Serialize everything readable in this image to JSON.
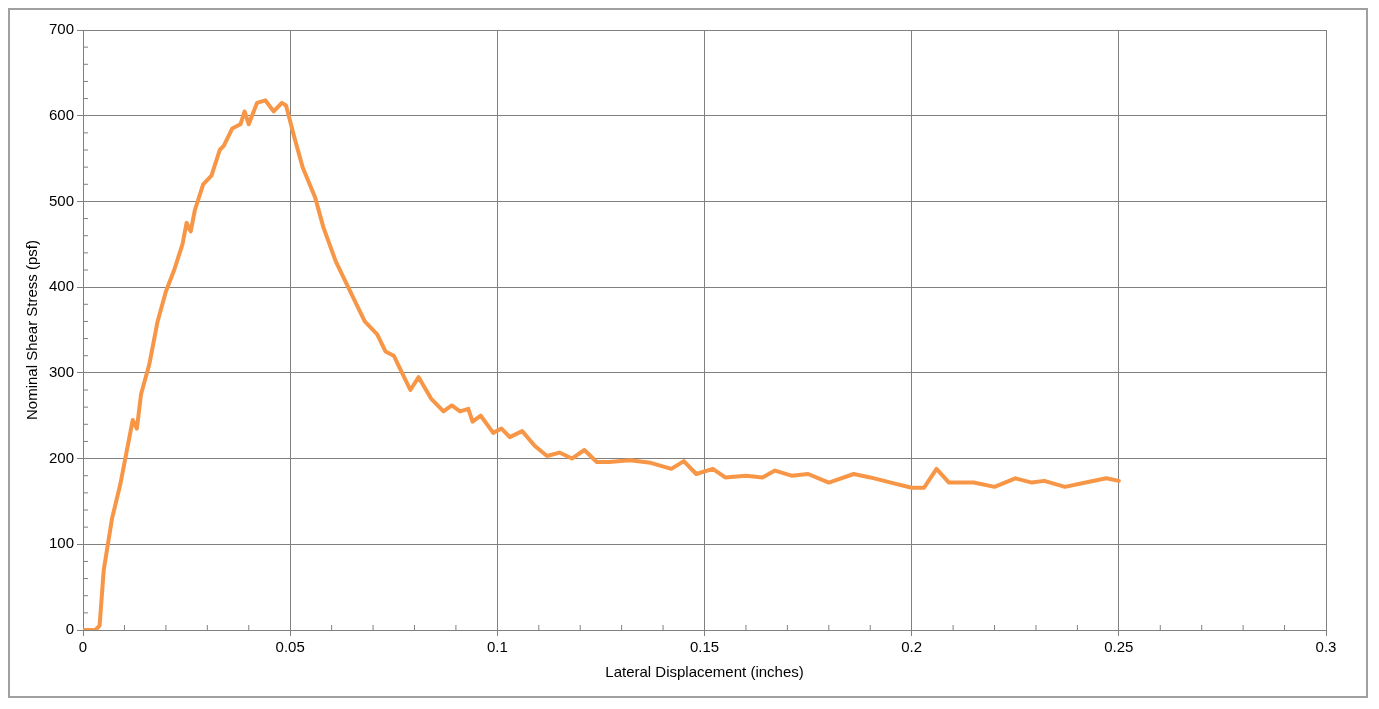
{
  "chart_data": {
    "type": "line",
    "xlabel": "Lateral Displacement (inches)",
    "ylabel": "Nominal Shear Stress (psf)",
    "xlim": [
      0,
      0.3
    ],
    "xticks": [
      0,
      0.05,
      0.1,
      0.15,
      0.2,
      0.25,
      0.3
    ],
    "ylim": [
      0,
      700
    ],
    "yticks": [
      0,
      100,
      200,
      300,
      400,
      500,
      600,
      700
    ],
    "grid": true,
    "legend": false,
    "marker": "none",
    "line_style": "solid",
    "series": [
      {
        "color": "#f79646",
        "x": [
          0,
          0.003,
          0.004,
          0.005,
          0.007,
          0.009,
          0.011,
          0.012,
          0.013,
          0.014,
          0.016,
          0.018,
          0.02,
          0.022,
          0.024,
          0.025,
          0.026,
          0.027,
          0.029,
          0.031,
          0.033,
          0.034,
          0.036,
          0.038,
          0.039,
          0.04,
          0.042,
          0.044,
          0.046,
          0.048,
          0.049,
          0.051,
          0.053,
          0.056,
          0.058,
          0.061,
          0.064,
          0.066,
          0.068,
          0.071,
          0.073,
          0.075,
          0.077,
          0.079,
          0.081,
          0.084,
          0.087,
          0.089,
          0.091,
          0.093,
          0.094,
          0.096,
          0.099,
          0.101,
          0.103,
          0.106,
          0.109,
          0.112,
          0.115,
          0.118,
          0.121,
          0.124,
          0.127,
          0.132,
          0.137,
          0.142,
          0.145,
          0.148,
          0.152,
          0.155,
          0.16,
          0.164,
          0.167,
          0.171,
          0.175,
          0.18,
          0.186,
          0.19,
          0.195,
          0.2,
          0.203,
          0.206,
          0.209,
          0.215,
          0.22,
          0.225,
          0.229,
          0.232,
          0.237,
          0.242,
          0.247,
          0.25
        ],
        "values": [
          0,
          0,
          5,
          70,
          130,
          170,
          220,
          245,
          235,
          275,
          310,
          360,
          395,
          420,
          450,
          475,
          465,
          490,
          520,
          530,
          560,
          565,
          585,
          590,
          605,
          590,
          615,
          618,
          605,
          615,
          612,
          575,
          540,
          505,
          470,
          430,
          400,
          380,
          360,
          345,
          325,
          320,
          300,
          280,
          295,
          270,
          255,
          262,
          255,
          258,
          243,
          250,
          230,
          235,
          225,
          232,
          215,
          203,
          207,
          200,
          210,
          196,
          196,
          198,
          195,
          188,
          197,
          182,
          188,
          178,
          180,
          178,
          186,
          180,
          182,
          172,
          182,
          178,
          172,
          166,
          166,
          188,
          172,
          172,
          167,
          177,
          172,
          174,
          167,
          172,
          177,
          174
        ]
      }
    ]
  }
}
